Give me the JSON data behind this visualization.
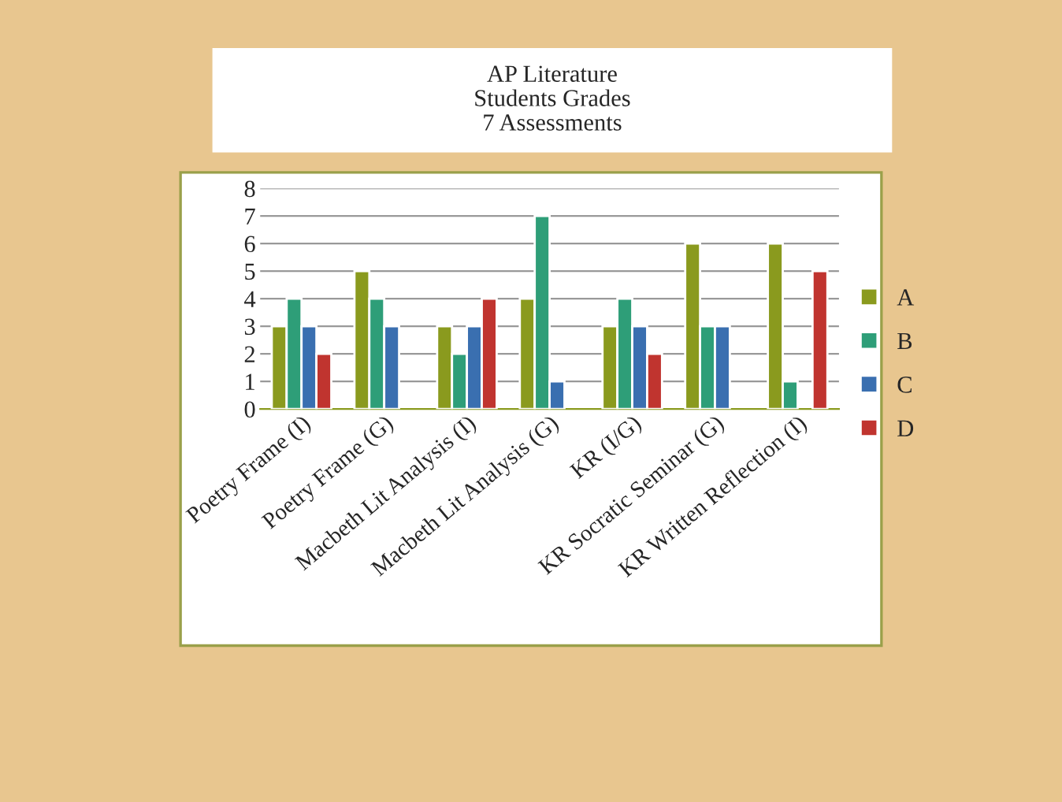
{
  "chart_data": {
    "type": "bar",
    "title": "AP Literature\nStudents Grades\n7 Assessments",
    "categories": [
      "Poetry Frame (I)",
      "Poetry Frame (G)",
      "Macbeth Lit Analysis (I)",
      "Macbeth Lit Analysis (G)",
      "KR (I/G)",
      "KR Socratic Seminar (G)",
      "KR Written Reflection (I)"
    ],
    "series": [
      {
        "name": "A",
        "color": "#8a9a1e",
        "values": [
          3,
          5,
          3,
          4,
          3,
          6,
          6
        ]
      },
      {
        "name": "B",
        "color": "#2e9e78",
        "values": [
          4,
          4,
          2,
          7,
          4,
          3,
          1
        ]
      },
      {
        "name": "C",
        "color": "#3a6fb0",
        "values": [
          3,
          3,
          3,
          1,
          3,
          3,
          null
        ]
      },
      {
        "name": "D",
        "color": "#c0342f",
        "values": [
          2,
          null,
          4,
          null,
          2,
          null,
          5
        ]
      }
    ],
    "ylim": [
      0,
      8
    ],
    "yticks": [
      0,
      1,
      2,
      3,
      4,
      5,
      6,
      7,
      8
    ],
    "grid": "y",
    "legend": "right"
  }
}
